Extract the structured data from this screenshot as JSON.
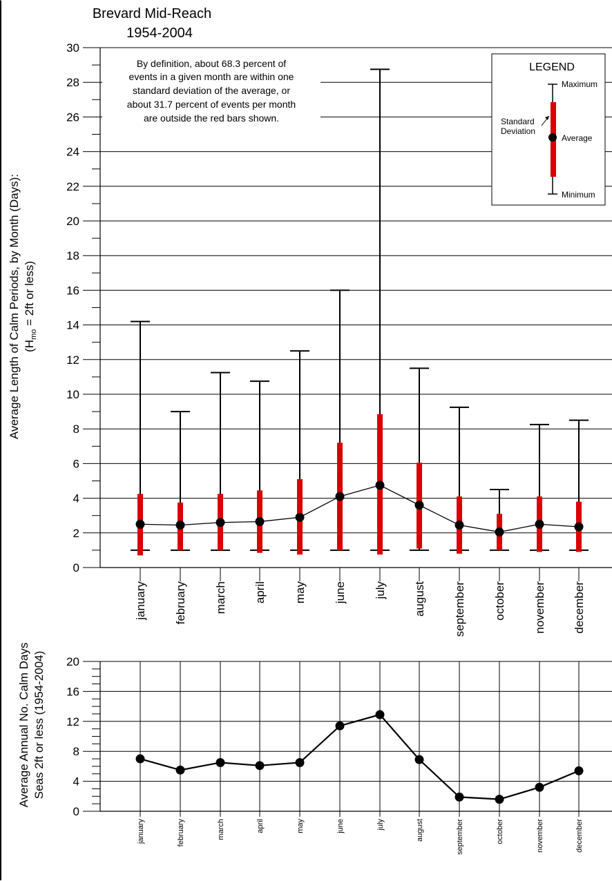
{
  "colors": {
    "std_bar": "#d90000",
    "line": "#000000",
    "grid": "#000000",
    "background": "#ffffff"
  },
  "chart_data": [
    {
      "type": "box",
      "title": "Brevard Mid-Reach",
      "subtitle": "1954-2004",
      "ylabel": "Average Length of Calm Periods, by Month (Days):",
      "ylabel2_pre": "(H",
      "ylabel2_sub": "mo",
      "ylabel2_post": " = 2ft or less)",
      "ylim": [
        0,
        30
      ],
      "yticks": [
        0,
        2,
        4,
        6,
        8,
        10,
        12,
        14,
        16,
        18,
        20,
        22,
        24,
        26,
        28,
        30
      ],
      "grid": true,
      "categories": [
        "january",
        "february",
        "march",
        "april",
        "may",
        "june",
        "july",
        "august",
        "september",
        "october",
        "november",
        "december"
      ],
      "series": [
        {
          "name": "Maximum",
          "values": [
            14.2,
            9.0,
            11.25,
            10.75,
            12.5,
            16.0,
            28.75,
            11.5,
            9.25,
            4.5,
            8.25,
            8.5
          ]
        },
        {
          "name": "Minimum",
          "values": [
            1.0,
            1.0,
            1.0,
            1.0,
            1.0,
            1.0,
            1.0,
            1.0,
            1.0,
            1.0,
            1.0,
            1.0
          ]
        },
        {
          "name": "Average",
          "values": [
            2.5,
            2.45,
            2.6,
            2.65,
            2.9,
            4.1,
            4.75,
            3.6,
            2.45,
            2.05,
            2.5,
            2.35
          ]
        },
        {
          "name": "Standard Deviation",
          "low": [
            0.7,
            1.0,
            1.0,
            0.85,
            0.75,
            1.0,
            0.75,
            1.1,
            0.8,
            1.0,
            0.9,
            0.9
          ],
          "high": [
            4.25,
            3.75,
            4.25,
            4.45,
            5.1,
            7.2,
            8.85,
            6.05,
            4.1,
            3.1,
            4.1,
            3.8
          ]
        }
      ],
      "annotation_lines": [
        "By definition, about 68.3 percent of",
        "events in a given month are within one",
        "standard deviation of the average, or",
        "about 31.7 percent of events per month",
        "are outside the red bars shown."
      ],
      "legend": {
        "title": "LEGEND",
        "maximum": "Maximum",
        "average": "Average",
        "minimum": "Minimum",
        "std_line1": "Standard",
        "std_line2": "Deviation",
        "placement": "top-right"
      }
    },
    {
      "type": "line",
      "ylabel_line1": "Average Annual No. Calm Days",
      "ylabel_line2": "Seas 2ft or less (1954-2004)",
      "ylim": [
        0,
        20
      ],
      "yticks": [
        0,
        4,
        8,
        12,
        16,
        20
      ],
      "grid": true,
      "categories": [
        "january",
        "february",
        "march",
        "april",
        "may",
        "june",
        "july",
        "august",
        "september",
        "october",
        "november",
        "december"
      ],
      "values": [
        7.0,
        5.5,
        6.5,
        6.1,
        6.5,
        11.4,
        12.9,
        6.9,
        1.9,
        1.6,
        3.2,
        5.4
      ]
    }
  ]
}
